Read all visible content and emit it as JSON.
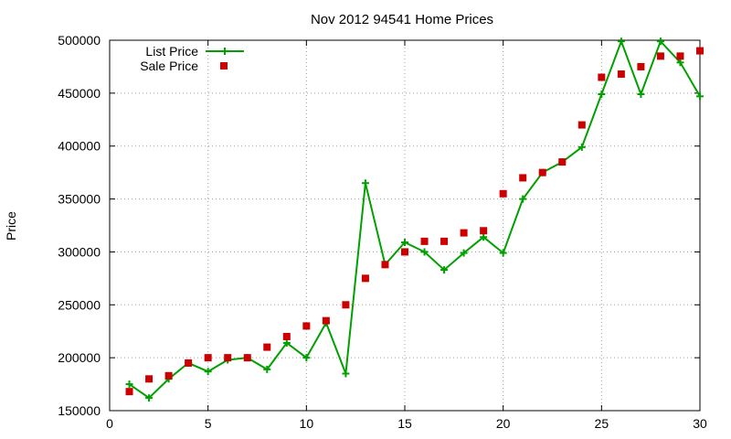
{
  "chart_data": {
    "type": "line",
    "title": "Nov 2012 94541 Home Prices",
    "xlabel": "",
    "ylabel": "Price",
    "xlim": [
      0,
      30
    ],
    "ylim": [
      150000,
      500000
    ],
    "x_ticks": [
      0,
      5,
      10,
      15,
      20,
      25,
      30
    ],
    "y_ticks": [
      150000,
      200000,
      250000,
      300000,
      350000,
      400000,
      450000,
      500000
    ],
    "grid": true,
    "legend_position": "top-left",
    "series": [
      {
        "name": "List Price",
        "style": "line-with-plus-markers",
        "color": "#00a000",
        "x": [
          1,
          2,
          3,
          4,
          5,
          6,
          7,
          8,
          9,
          10,
          11,
          12,
          13,
          14,
          15,
          16,
          17,
          18,
          19,
          20,
          21,
          22,
          23,
          24,
          25,
          26,
          27,
          28,
          29,
          30
        ],
        "values": [
          175000,
          162000,
          180000,
          195000,
          187000,
          198000,
          200000,
          189000,
          214000,
          200000,
          233000,
          185000,
          365000,
          288000,
          309000,
          300000,
          283000,
          299000,
          314000,
          299000,
          350000,
          375000,
          385000,
          399000,
          449000,
          499000,
          449000,
          499000,
          479000,
          447000
        ]
      },
      {
        "name": "Sale Price",
        "style": "square-markers",
        "color": "#cc0000",
        "x": [
          1,
          2,
          3,
          4,
          5,
          6,
          7,
          8,
          9,
          10,
          11,
          12,
          13,
          14,
          15,
          16,
          17,
          18,
          19,
          20,
          21,
          22,
          23,
          24,
          25,
          26,
          27,
          28,
          29,
          30
        ],
        "values": [
          168000,
          180000,
          183000,
          195000,
          200000,
          200000,
          200000,
          210000,
          220000,
          230000,
          235000,
          250000,
          275000,
          288000,
          300000,
          310000,
          310000,
          318000,
          320000,
          355000,
          370000,
          375000,
          385000,
          420000,
          465000,
          468000,
          475000,
          485000,
          485000,
          490000
        ]
      }
    ]
  }
}
